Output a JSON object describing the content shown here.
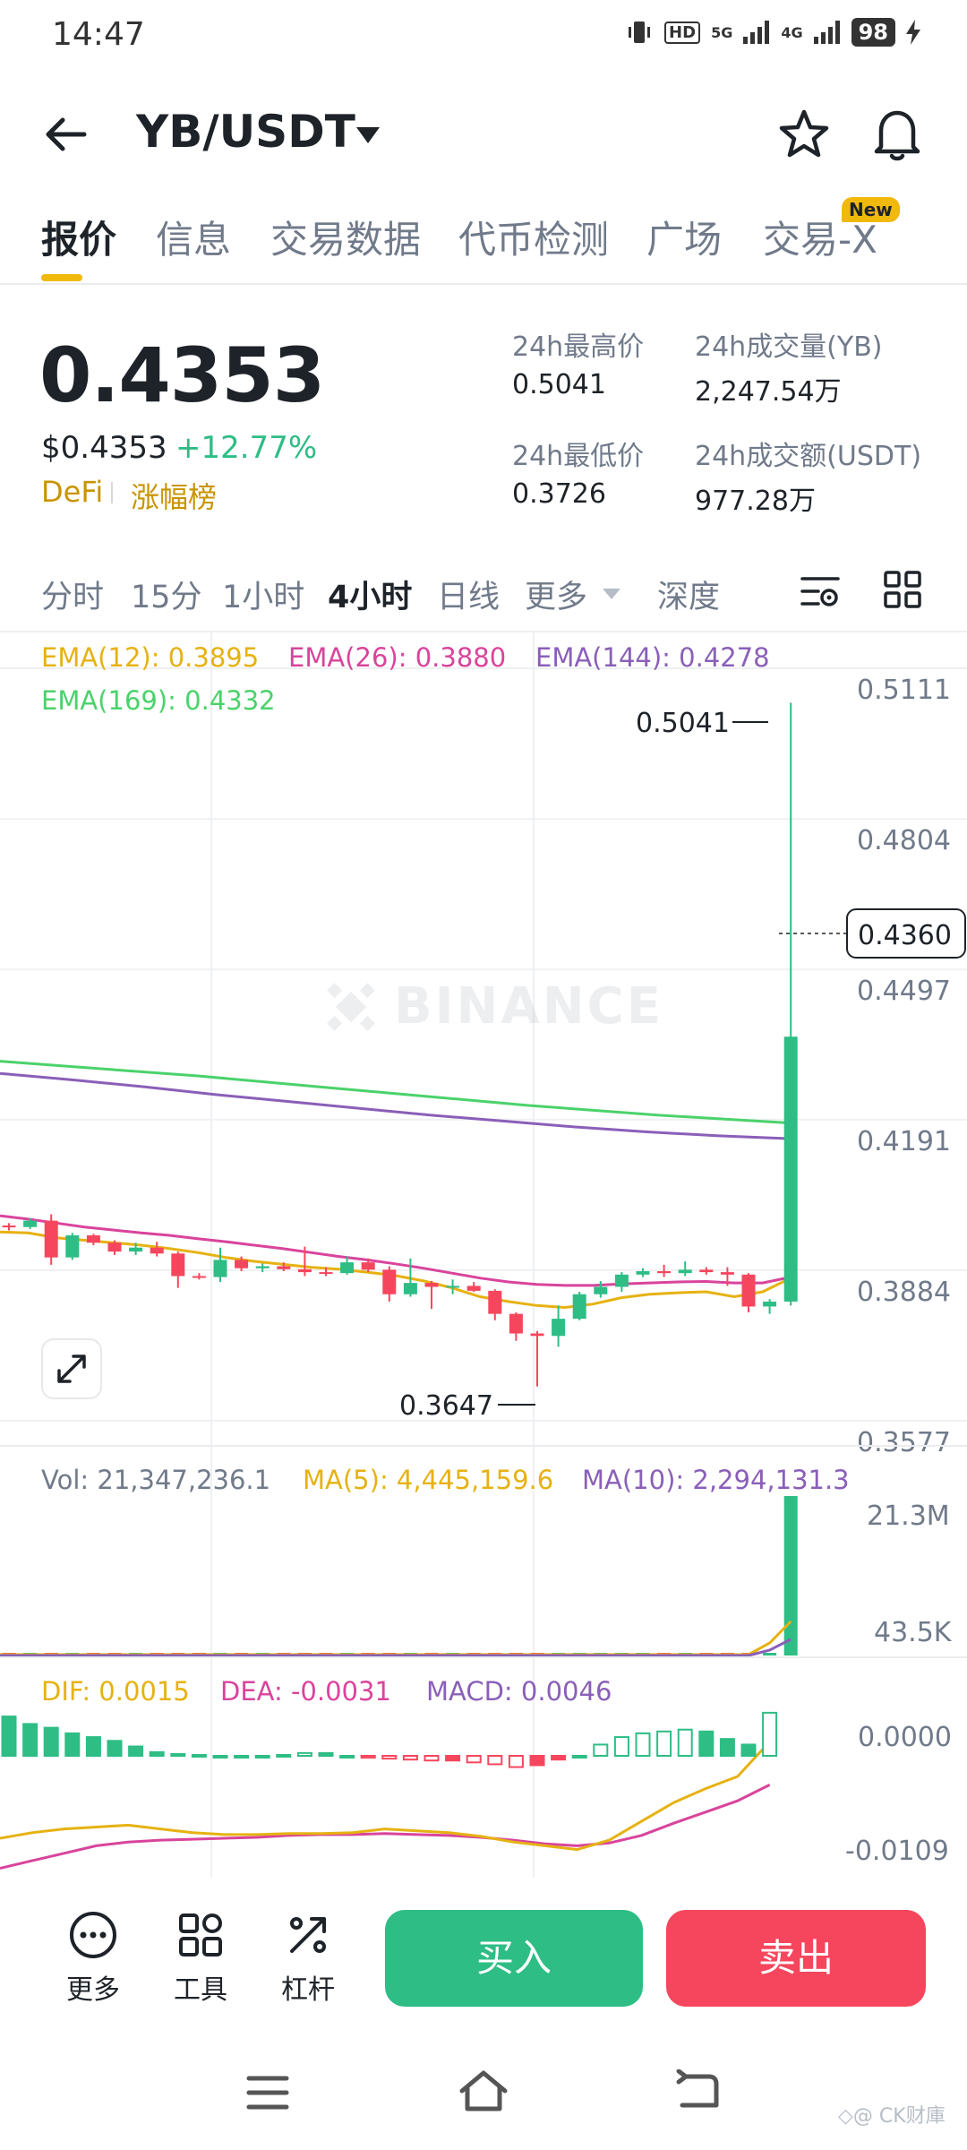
{
  "status_bar": {
    "time": "14:47",
    "hd": "HD",
    "net1": "5G",
    "net2": "4G",
    "battery": "98"
  },
  "header": {
    "pair": "YB/USDT"
  },
  "tabs": [
    {
      "label": "报价"
    },
    {
      "label": "信息"
    },
    {
      "label": "交易数据"
    },
    {
      "label": "代币检测"
    },
    {
      "label": "广场"
    },
    {
      "label": "交易-X"
    }
  ],
  "new_badge": "New",
  "price": {
    "last": "0.4353",
    "usd": "$0.4353",
    "change": "+12.77%",
    "tag1": "DeFi",
    "tag2": "涨幅榜"
  },
  "stats": {
    "high_label": "24h最高价",
    "high": "0.5041",
    "vol_label": "24h成交量(YB)",
    "vol": "2,247.54万",
    "low_label": "24h最低价",
    "low": "0.3726",
    "turnover_label": "24h成交额(USDT)",
    "turnover": "977.28万"
  },
  "timeframes": [
    {
      "label": "分时"
    },
    {
      "label": "15分"
    },
    {
      "label": "1小时"
    },
    {
      "label": "4小时"
    },
    {
      "label": "日线"
    },
    {
      "label": "更多"
    },
    {
      "label": "深度"
    }
  ],
  "chart_data": {
    "type": "candlestick",
    "price_axis": {
      "ticks": [
        "0.5111",
        "0.4804",
        "0.4497",
        "0.4191",
        "0.3884",
        "0.3577"
      ],
      "range": [
        0.3577,
        0.5111
      ]
    },
    "current_price_label": "0.4360",
    "high_marker": "0.5041",
    "low_marker": "0.3647",
    "watermark": "BINANCE",
    "ema_legend": {
      "ema12": "EMA(12): 0.3895",
      "ema26": "EMA(26): 0.3880",
      "ema144": "EMA(144): 0.4278",
      "ema169": "EMA(169): 0.4332"
    },
    "ema_colors": {
      "ema12": "#e6b212",
      "ema26": "#d9449c",
      "ema144": "#8a5fb8",
      "ema169": "#4bd26b"
    },
    "candles": [
      [
        0.3975,
        0.398,
        0.3965,
        0.3972
      ],
      [
        0.3972,
        0.399,
        0.3968,
        0.3985
      ],
      [
        0.3985,
        0.3998,
        0.3895,
        0.391
      ],
      [
        0.391,
        0.396,
        0.3905,
        0.3955
      ],
      [
        0.3955,
        0.3958,
        0.3935,
        0.394
      ],
      [
        0.394,
        0.3945,
        0.3915,
        0.3922
      ],
      [
        0.3922,
        0.394,
        0.3915,
        0.393
      ],
      [
        0.393,
        0.3942,
        0.3912,
        0.3918
      ],
      [
        0.3918,
        0.3922,
        0.3848,
        0.3872
      ],
      [
        0.3872,
        0.3878,
        0.3865,
        0.387
      ],
      [
        0.387,
        0.393,
        0.386,
        0.3905
      ],
      [
        0.3905,
        0.3912,
        0.3882,
        0.3888
      ],
      [
        0.3888,
        0.3898,
        0.388,
        0.3892
      ],
      [
        0.3892,
        0.39,
        0.3882,
        0.3886
      ],
      [
        0.3886,
        0.3932,
        0.3872,
        0.388
      ],
      [
        0.388,
        0.389,
        0.3872,
        0.3878
      ],
      [
        0.3878,
        0.3912,
        0.3875,
        0.39
      ],
      [
        0.39,
        0.3908,
        0.388,
        0.3885
      ],
      [
        0.3885,
        0.3892,
        0.382,
        0.3835
      ],
      [
        0.3835,
        0.3908,
        0.383,
        0.3858
      ],
      [
        0.3858,
        0.3862,
        0.3805,
        0.385
      ],
      [
        0.385,
        0.3865,
        0.3835,
        0.3852
      ],
      [
        0.3852,
        0.386,
        0.384,
        0.3842
      ],
      [
        0.3842,
        0.3845,
        0.3782,
        0.3795
      ],
      [
        0.3795,
        0.3798,
        0.374,
        0.3755
      ],
      [
        0.3755,
        0.376,
        0.3647,
        0.375
      ],
      [
        0.375,
        0.3812,
        0.3728,
        0.3785
      ],
      [
        0.3785,
        0.384,
        0.3782,
        0.3835
      ],
      [
        0.3835,
        0.3862,
        0.3828,
        0.385
      ],
      [
        0.385,
        0.388,
        0.384,
        0.3875
      ],
      [
        0.3875,
        0.3888,
        0.387,
        0.3882
      ],
      [
        0.3882,
        0.3895,
        0.387,
        0.3878
      ],
      [
        0.3878,
        0.3902,
        0.3872,
        0.3885
      ],
      [
        0.3885,
        0.389,
        0.3875,
        0.388
      ],
      [
        0.388,
        0.389,
        0.3852,
        0.3875
      ],
      [
        0.3875,
        0.3878,
        0.3798,
        0.381
      ],
      [
        0.381,
        0.3825,
        0.3795,
        0.382
      ],
      [
        0.382,
        0.5041,
        0.3812,
        0.436
      ]
    ],
    "ema12": [
      0.3962,
      0.396,
      0.395,
      0.3945,
      0.394,
      0.3935,
      0.3928,
      0.392,
      0.391,
      0.3902,
      0.3896,
      0.389,
      0.3886,
      0.388,
      0.3873,
      0.3862,
      0.3848,
      0.383,
      0.382,
      0.3812,
      0.3808,
      0.3815,
      0.3828,
      0.3835,
      0.3838,
      0.384,
      0.383,
      0.384,
      0.3868
    ],
    "ema26": [
      0.3995,
      0.3988,
      0.398,
      0.3972,
      0.3966,
      0.396,
      0.3955,
      0.3948,
      0.3942,
      0.3935,
      0.3928,
      0.392,
      0.3912,
      0.3905,
      0.3897,
      0.3888,
      0.3878,
      0.3868,
      0.386,
      0.3855,
      0.3853,
      0.3853,
      0.3856,
      0.3858,
      0.386,
      0.3861,
      0.3858,
      0.3858,
      0.387
    ],
    "ema144": [
      0.4285,
      0.4272,
      0.4258,
      0.4242,
      0.4228,
      0.4214,
      0.42,
      0.4188,
      0.4176,
      0.4166,
      0.4158,
      0.4152
    ],
    "ema169": [
      0.431,
      0.43,
      0.429,
      0.428,
      0.4268,
      0.4256,
      0.4244,
      0.4232,
      0.422,
      0.421,
      0.42,
      0.4192,
      0.4184
    ],
    "volume_legend": {
      "vol": "Vol: 21,347,236.1",
      "ma5": "MA(5): 4,445,159.6",
      "ma10": "MA(10): 2,294,131.3"
    },
    "volume_axis": [
      "21.3M",
      "43.5K"
    ],
    "macd_legend": {
      "dif": "DIF: 0.0015",
      "dea": "DEA: -0.0031",
      "macd": "MACD: 0.0046"
    },
    "macd_axis": [
      "0.0000",
      "-0.0109"
    ],
    "macd_hist": [
      0.0042,
      0.0034,
      0.003,
      0.0024,
      0.002,
      0.0016,
      0.001,
      0.0004,
      0.0002,
      0.0001,
      0.0,
      0.0,
      0.0,
      0.0001,
      0.0003,
      0.0003,
      0.0,
      -0.0002,
      -0.0003,
      -0.0004,
      -0.0005,
      -0.0005,
      -0.0007,
      -0.0009,
      -0.0012,
      -0.001,
      -0.0004,
      0.0,
      0.0012,
      0.002,
      0.0024,
      0.0026,
      0.0028,
      0.0026,
      0.0018,
      0.0012,
      0.0046
    ],
    "macd_dif": [
      -0.0088,
      -0.0082,
      -0.0078,
      -0.0076,
      -0.0074,
      -0.0078,
      -0.0082,
      -0.0084,
      -0.0084,
      -0.0083,
      -0.0083,
      -0.0082,
      -0.0078,
      -0.008,
      -0.0082,
      -0.0086,
      -0.0092,
      -0.0096,
      -0.01,
      -0.009,
      -0.007,
      -0.005,
      -0.0035,
      -0.0022,
      0.0015
    ],
    "macd_dea": [
      -0.012,
      -0.0112,
      -0.0104,
      -0.0096,
      -0.0092,
      -0.009,
      -0.0089,
      -0.0088,
      -0.0087,
      -0.0085,
      -0.0084,
      -0.0084,
      -0.0083,
      -0.0084,
      -0.0085,
      -0.0087,
      -0.009,
      -0.0094,
      -0.0096,
      -0.0093,
      -0.0085,
      -0.0072,
      -0.006,
      -0.0048,
      -0.0031
    ]
  },
  "bottom": {
    "more": "更多",
    "tools": "工具",
    "leverage": "杠杆",
    "buy": "买入",
    "sell": "卖出"
  },
  "credit": "◇@ CK财庫"
}
